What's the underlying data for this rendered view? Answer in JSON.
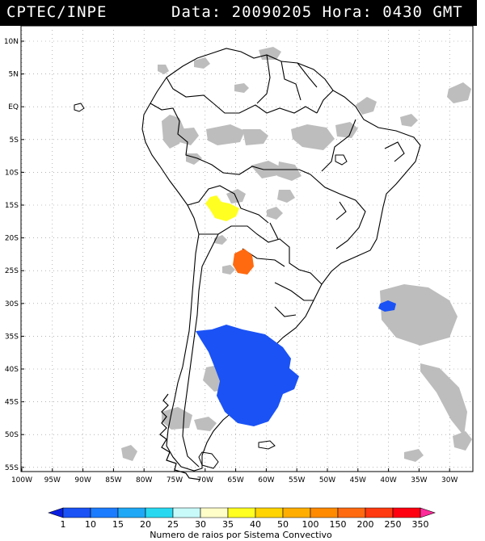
{
  "header": {
    "source": "CPTEC/INPE",
    "datetime": "Data: 20090205 Hora: 0430 GMT"
  },
  "map": {
    "lat_labels": [
      "10N",
      "5N",
      "EQ",
      "5S",
      "10S",
      "15S",
      "20S",
      "25S",
      "30S",
      "35S",
      "40S",
      "45S",
      "50S",
      "55S"
    ],
    "lon_labels": [
      "100W",
      "95W",
      "90W",
      "85W",
      "80W",
      "75W",
      "70W",
      "65W",
      "60W",
      "55W",
      "50W",
      "45W",
      "40W",
      "35W",
      "30W"
    ],
    "cells": [
      {
        "name": "bolivia-cell",
        "lon": -64.5,
        "lat": -16.8,
        "value": "35-40",
        "color": "#ffff22"
      },
      {
        "name": "paraguay-cell",
        "lon": -63.0,
        "lat": -23.8,
        "value": "150-200",
        "color": "#ff6a10"
      },
      {
        "name": "atlantic-cell",
        "lon": -40.0,
        "lat": -30.5,
        "value": "1-10",
        "color": "#1a52f5"
      },
      {
        "name": "patagonia-cluster",
        "lon": -60.5,
        "lat": -39.5,
        "value": "1-10",
        "color": "#1a52f5"
      }
    ]
  },
  "colorbar": {
    "ticks": [
      "1",
      "10",
      "15",
      "20",
      "25",
      "30",
      "35",
      "40",
      "50",
      "100",
      "150",
      "200",
      "250",
      "350"
    ],
    "colors": [
      "#0a1fe0",
      "#1a52f5",
      "#1c7cff",
      "#1fa8f5",
      "#28d8f0",
      "#c8fafa",
      "#fffdc8",
      "#ffff22",
      "#ffd400",
      "#ffae00",
      "#ff8a00",
      "#ff6a10",
      "#ff3a10",
      "#ff0010",
      "#ff2a9a"
    ],
    "label": "Numero de raios por Sistema Convectivo"
  }
}
